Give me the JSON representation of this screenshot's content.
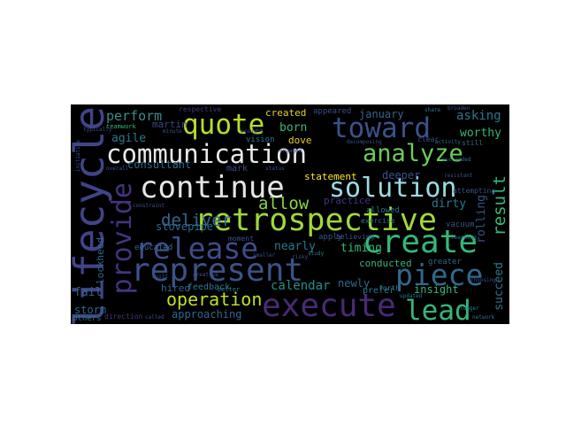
{
  "wordcloud": {
    "words": [
      {
        "text": "lifecycle",
        "color": "#414487"
      },
      {
        "text": "communication",
        "color": "#e8e8e8"
      },
      {
        "text": "retrospective",
        "color": "#a0da39"
      },
      {
        "text": "continue",
        "color": "#e6e6e6"
      },
      {
        "text": "solution",
        "color": "#9bdbe0"
      },
      {
        "text": "represent",
        "color": "#3b5288"
      },
      {
        "text": "execute",
        "color": "#482a74"
      },
      {
        "text": "release",
        "color": "#3f4b8a"
      },
      {
        "text": "create",
        "color": "#35b779"
      },
      {
        "text": "toward",
        "color": "#3b528b"
      },
      {
        "text": "analyze",
        "color": "#6ccd5a"
      },
      {
        "text": "provide",
        "color": "#46337e"
      },
      {
        "text": "quote",
        "color": "#b5de2b"
      },
      {
        "text": "piece",
        "color": "#31688e"
      },
      {
        "text": "lead",
        "color": "#35b779"
      },
      {
        "text": "operation",
        "color": "#c2df23"
      },
      {
        "text": "deliver",
        "color": "#31688e"
      },
      {
        "text": "allow",
        "color": "#89d548"
      },
      {
        "text": "result",
        "color": "#35b779"
      },
      {
        "text": "perform",
        "color": "#3e8b8c"
      },
      {
        "text": "agile",
        "color": "#2a788e"
      },
      {
        "text": "martin",
        "color": "#414487"
      },
      {
        "text": "born",
        "color": "#35b779"
      },
      {
        "text": "created",
        "color": "#e6d02a"
      },
      {
        "text": "dove",
        "color": "#e6d02a"
      },
      {
        "text": "appeared",
        "color": "#3e4a89"
      },
      {
        "text": "january",
        "color": "#31688e"
      },
      {
        "text": "asking",
        "color": "#2a788e"
      },
      {
        "text": "worthy",
        "color": "#35b779"
      },
      {
        "text": "consultant",
        "color": "#31688e"
      },
      {
        "text": "vision",
        "color": "#2a788e"
      },
      {
        "text": "statement",
        "color": "#fde725"
      },
      {
        "text": "deeper",
        "color": "#3b528b"
      },
      {
        "text": "practice",
        "color": "#46337e"
      },
      {
        "text": "dirty",
        "color": "#2a788e"
      },
      {
        "text": "rolling",
        "color": "#3b528b"
      },
      {
        "text": "nearly",
        "color": "#2a788e"
      },
      {
        "text": "timing",
        "color": "#35b779"
      },
      {
        "text": "calendar",
        "color": "#21918c"
      },
      {
        "text": "newly",
        "color": "#31688e"
      },
      {
        "text": "insight",
        "color": "#35b779"
      },
      {
        "text": "succeed",
        "color": "#2a788e"
      },
      {
        "text": "conducted",
        "color": "#35b779"
      },
      {
        "text": "fail",
        "color": "#31688e"
      },
      {
        "text": "hired",
        "color": "#31688e"
      },
      {
        "text": "approaching",
        "color": "#31688e"
      },
      {
        "text": "storm",
        "color": "#31688e"
      },
      {
        "text": "stovepipe",
        "color": "#31688e"
      },
      {
        "text": "educated",
        "color": "#31688e"
      },
      {
        "text": "lockheed",
        "color": "#31688e"
      },
      {
        "text": "mark",
        "color": "#3e4a89"
      },
      {
        "text": "feedback",
        "color": "#2a788e"
      },
      {
        "text": "others",
        "color": "#2a788e"
      },
      {
        "text": "direction",
        "color": "#46337e"
      },
      {
        "text": "greater",
        "color": "#31688e"
      },
      {
        "text": "prefer",
        "color": "#2a788e"
      },
      {
        "text": "allowed",
        "color": "#2a788e"
      },
      {
        "text": "vacuum",
        "color": "#3b528b"
      },
      {
        "text": "exercise",
        "color": "#2a788e"
      },
      {
        "text": "apply",
        "color": "#3b528b"
      },
      {
        "text": "believing",
        "color": "#3b528b"
      },
      {
        "text": "moment",
        "color": "#3b528b"
      },
      {
        "text": "forth",
        "color": "#2a788e"
      },
      {
        "text": "respective",
        "color": "#46337e"
      },
      {
        "text": "teamwork",
        "color": "#35b779"
      },
      {
        "text": "attempting",
        "color": "#3b528b"
      },
      {
        "text": "clear",
        "color": "#3b528b"
      },
      {
        "text": "still",
        "color": "#31688e"
      },
      {
        "text": "typically",
        "color": "#3b528b"
      },
      {
        "text": "overall",
        "color": "#3b528b"
      },
      {
        "text": "constraint",
        "color": "#3b528b"
      },
      {
        "text": "better",
        "color": "#2a788e"
      },
      {
        "text": "called",
        "color": "#3b528b"
      },
      {
        "text": "updated",
        "color": "#2a788e"
      },
      {
        "text": "longer",
        "color": "#2a788e"
      },
      {
        "text": "choosing",
        "color": "#3b528b"
      },
      {
        "text": "learning",
        "color": "#2a788e"
      },
      {
        "text": "study",
        "color": "#2a788e"
      },
      {
        "text": "built",
        "color": "#3b528b"
      },
      {
        "text": "brought",
        "color": "#3b528b"
      },
      {
        "text": "decomposing",
        "color": "#3b528b"
      },
      {
        "text": "network",
        "color": "#2a788e"
      },
      {
        "text": "activity",
        "color": "#2a788e"
      },
      {
        "text": "risky",
        "color": "#3b528b"
      },
      {
        "text": "minute",
        "color": "#3b528b"
      },
      {
        "text": "status",
        "color": "#3b528b"
      },
      {
        "text": "succeeded",
        "color": "#2a788e"
      },
      {
        "text": "resistant",
        "color": "#3b528b"
      },
      {
        "text": "engaged",
        "color": "#3b528b"
      },
      {
        "text": "share",
        "color": "#2a788e"
      },
      {
        "text": "broaden",
        "color": "#3b528b"
      },
      {
        "text": "smaller",
        "color": "#3b528b"
      },
      {
        "text": "creative",
        "color": "#3b528b"
      },
      {
        "text": "initiative",
        "color": "#3b528b"
      }
    ]
  }
}
